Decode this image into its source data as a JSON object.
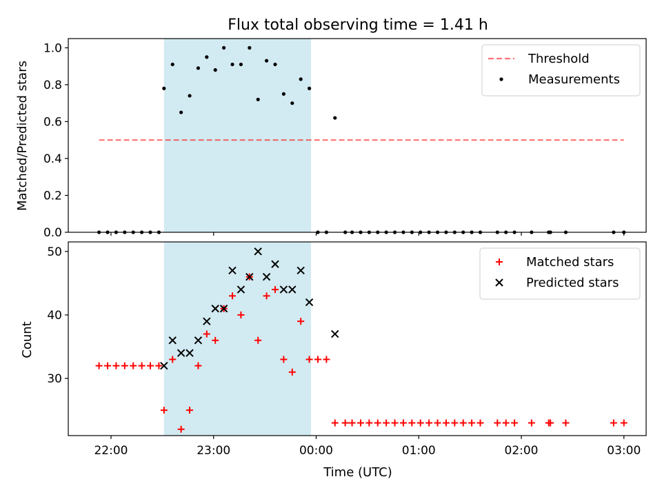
{
  "chart_data": {
    "title": "Flux total observing time = 1.41 h",
    "colors": {
      "shade": "#add8e6",
      "threshold": "#ff0000",
      "measurement": "#000000",
      "matched": "#ff0000",
      "predicted": "#000000"
    },
    "x_axis": {
      "label": "Time (UTC)",
      "ticks": [
        "22:00",
        "23:00",
        "00:00",
        "01:00",
        "02:00",
        "03:00"
      ]
    },
    "shaded_interval": {
      "start": "22:31",
      "end": "23:57"
    },
    "panels": [
      {
        "type": "scatter",
        "ylabel": "Matched/Predicted stars",
        "ylim": [
          0,
          1.05
        ],
        "yticks": [
          "0.0",
          "0.2",
          "0.4",
          "0.6",
          "0.8",
          "1.0"
        ],
        "grid": false,
        "legend_position": "top-right",
        "threshold": {
          "name": "Threshold",
          "value": 0.5,
          "x_range": [
            "21:53",
            "03:00"
          ]
        },
        "series": [
          {
            "name": "Measurements",
            "marker": "dot",
            "x": [
              "21:53",
              "21:58",
              "22:03",
              "22:08",
              "22:13",
              "22:18",
              "22:23",
              "22:28",
              "22:31",
              "22:36",
              "22:41",
              "22:46",
              "22:51",
              "22:56",
              "23:01",
              "23:06",
              "23:11",
              "23:16",
              "23:21",
              "23:26",
              "23:31",
              "23:36",
              "23:41",
              "23:46",
              "23:51",
              "23:56",
              "00:01",
              "00:06",
              "00:11",
              "00:17",
              "00:21",
              "00:26",
              "00:31",
              "00:36",
              "00:41",
              "00:46",
              "00:51",
              "00:56",
              "01:01",
              "01:06",
              "01:11",
              "01:16",
              "01:21",
              "01:26",
              "01:31",
              "01:36",
              "01:46",
              "01:51",
              "01:56",
              "02:06",
              "02:16",
              "02:17",
              "02:26",
              "02:54",
              "03:00"
            ],
            "y": [
              0,
              0,
              0,
              0,
              0,
              0,
              0,
              0,
              0.78,
              0.91,
              0.65,
              0.74,
              0.89,
              0.95,
              0.88,
              1.0,
              0.91,
              0.91,
              1.0,
              0.72,
              0.93,
              0.91,
              0.75,
              0.7,
              0.83,
              0.78,
              0,
              0,
              0.62,
              0,
              0,
              0,
              0,
              0,
              0,
              0,
              0,
              0,
              0,
              0,
              0,
              0,
              0,
              0,
              0,
              0,
              0,
              0,
              0,
              0,
              0,
              0,
              0,
              0,
              0
            ]
          }
        ]
      },
      {
        "type": "scatter",
        "ylabel": "Count",
        "ylim": [
          21,
          51.5
        ],
        "yticks": [
          "30",
          "40",
          "50"
        ],
        "grid": false,
        "legend_position": "top-right",
        "series": [
          {
            "name": "Matched stars",
            "marker": "plus",
            "x": [
              "21:53",
              "21:58",
              "22:03",
              "22:08",
              "22:13",
              "22:18",
              "22:23",
              "22:28",
              "22:31",
              "22:36",
              "22:41",
              "22:46",
              "22:51",
              "22:56",
              "23:01",
              "23:06",
              "23:11",
              "23:16",
              "23:21",
              "23:26",
              "23:31",
              "23:36",
              "23:41",
              "23:46",
              "23:51",
              "23:56",
              "00:01",
              "00:06",
              "00:11",
              "00:17",
              "00:21",
              "00:26",
              "00:31",
              "00:36",
              "00:41",
              "00:46",
              "00:51",
              "00:56",
              "01:01",
              "01:06",
              "01:11",
              "01:16",
              "01:21",
              "01:26",
              "01:31",
              "01:36",
              "01:46",
              "01:51",
              "01:56",
              "02:06",
              "02:16",
              "02:17",
              "02:26",
              "02:54",
              "03:00"
            ],
            "y": [
              32,
              32,
              32,
              32,
              32,
              32,
              32,
              32,
              25,
              33,
              22,
              25,
              32,
              37,
              36,
              41,
              43,
              40,
              46,
              36,
              43,
              44,
              33,
              31,
              39,
              33,
              33,
              33,
              23,
              23,
              23,
              23,
              23,
              23,
              23,
              23,
              23,
              23,
              23,
              23,
              23,
              23,
              23,
              23,
              23,
              23,
              23,
              23,
              23,
              23,
              23,
              23,
              23,
              23,
              23
            ]
          },
          {
            "name": "Predicted stars",
            "marker": "x",
            "x": [
              "22:31",
              "22:36",
              "22:41",
              "22:46",
              "22:51",
              "22:56",
              "23:01",
              "23:06",
              "23:11",
              "23:16",
              "23:21",
              "23:26",
              "23:31",
              "23:36",
              "23:41",
              "23:46",
              "23:51",
              "23:56",
              "00:11"
            ],
            "y": [
              32,
              36,
              34,
              34,
              36,
              39,
              41,
              41,
              47,
              44,
              46,
              50,
              46,
              48,
              44,
              44,
              47,
              42,
              37
            ]
          }
        ]
      }
    ]
  }
}
